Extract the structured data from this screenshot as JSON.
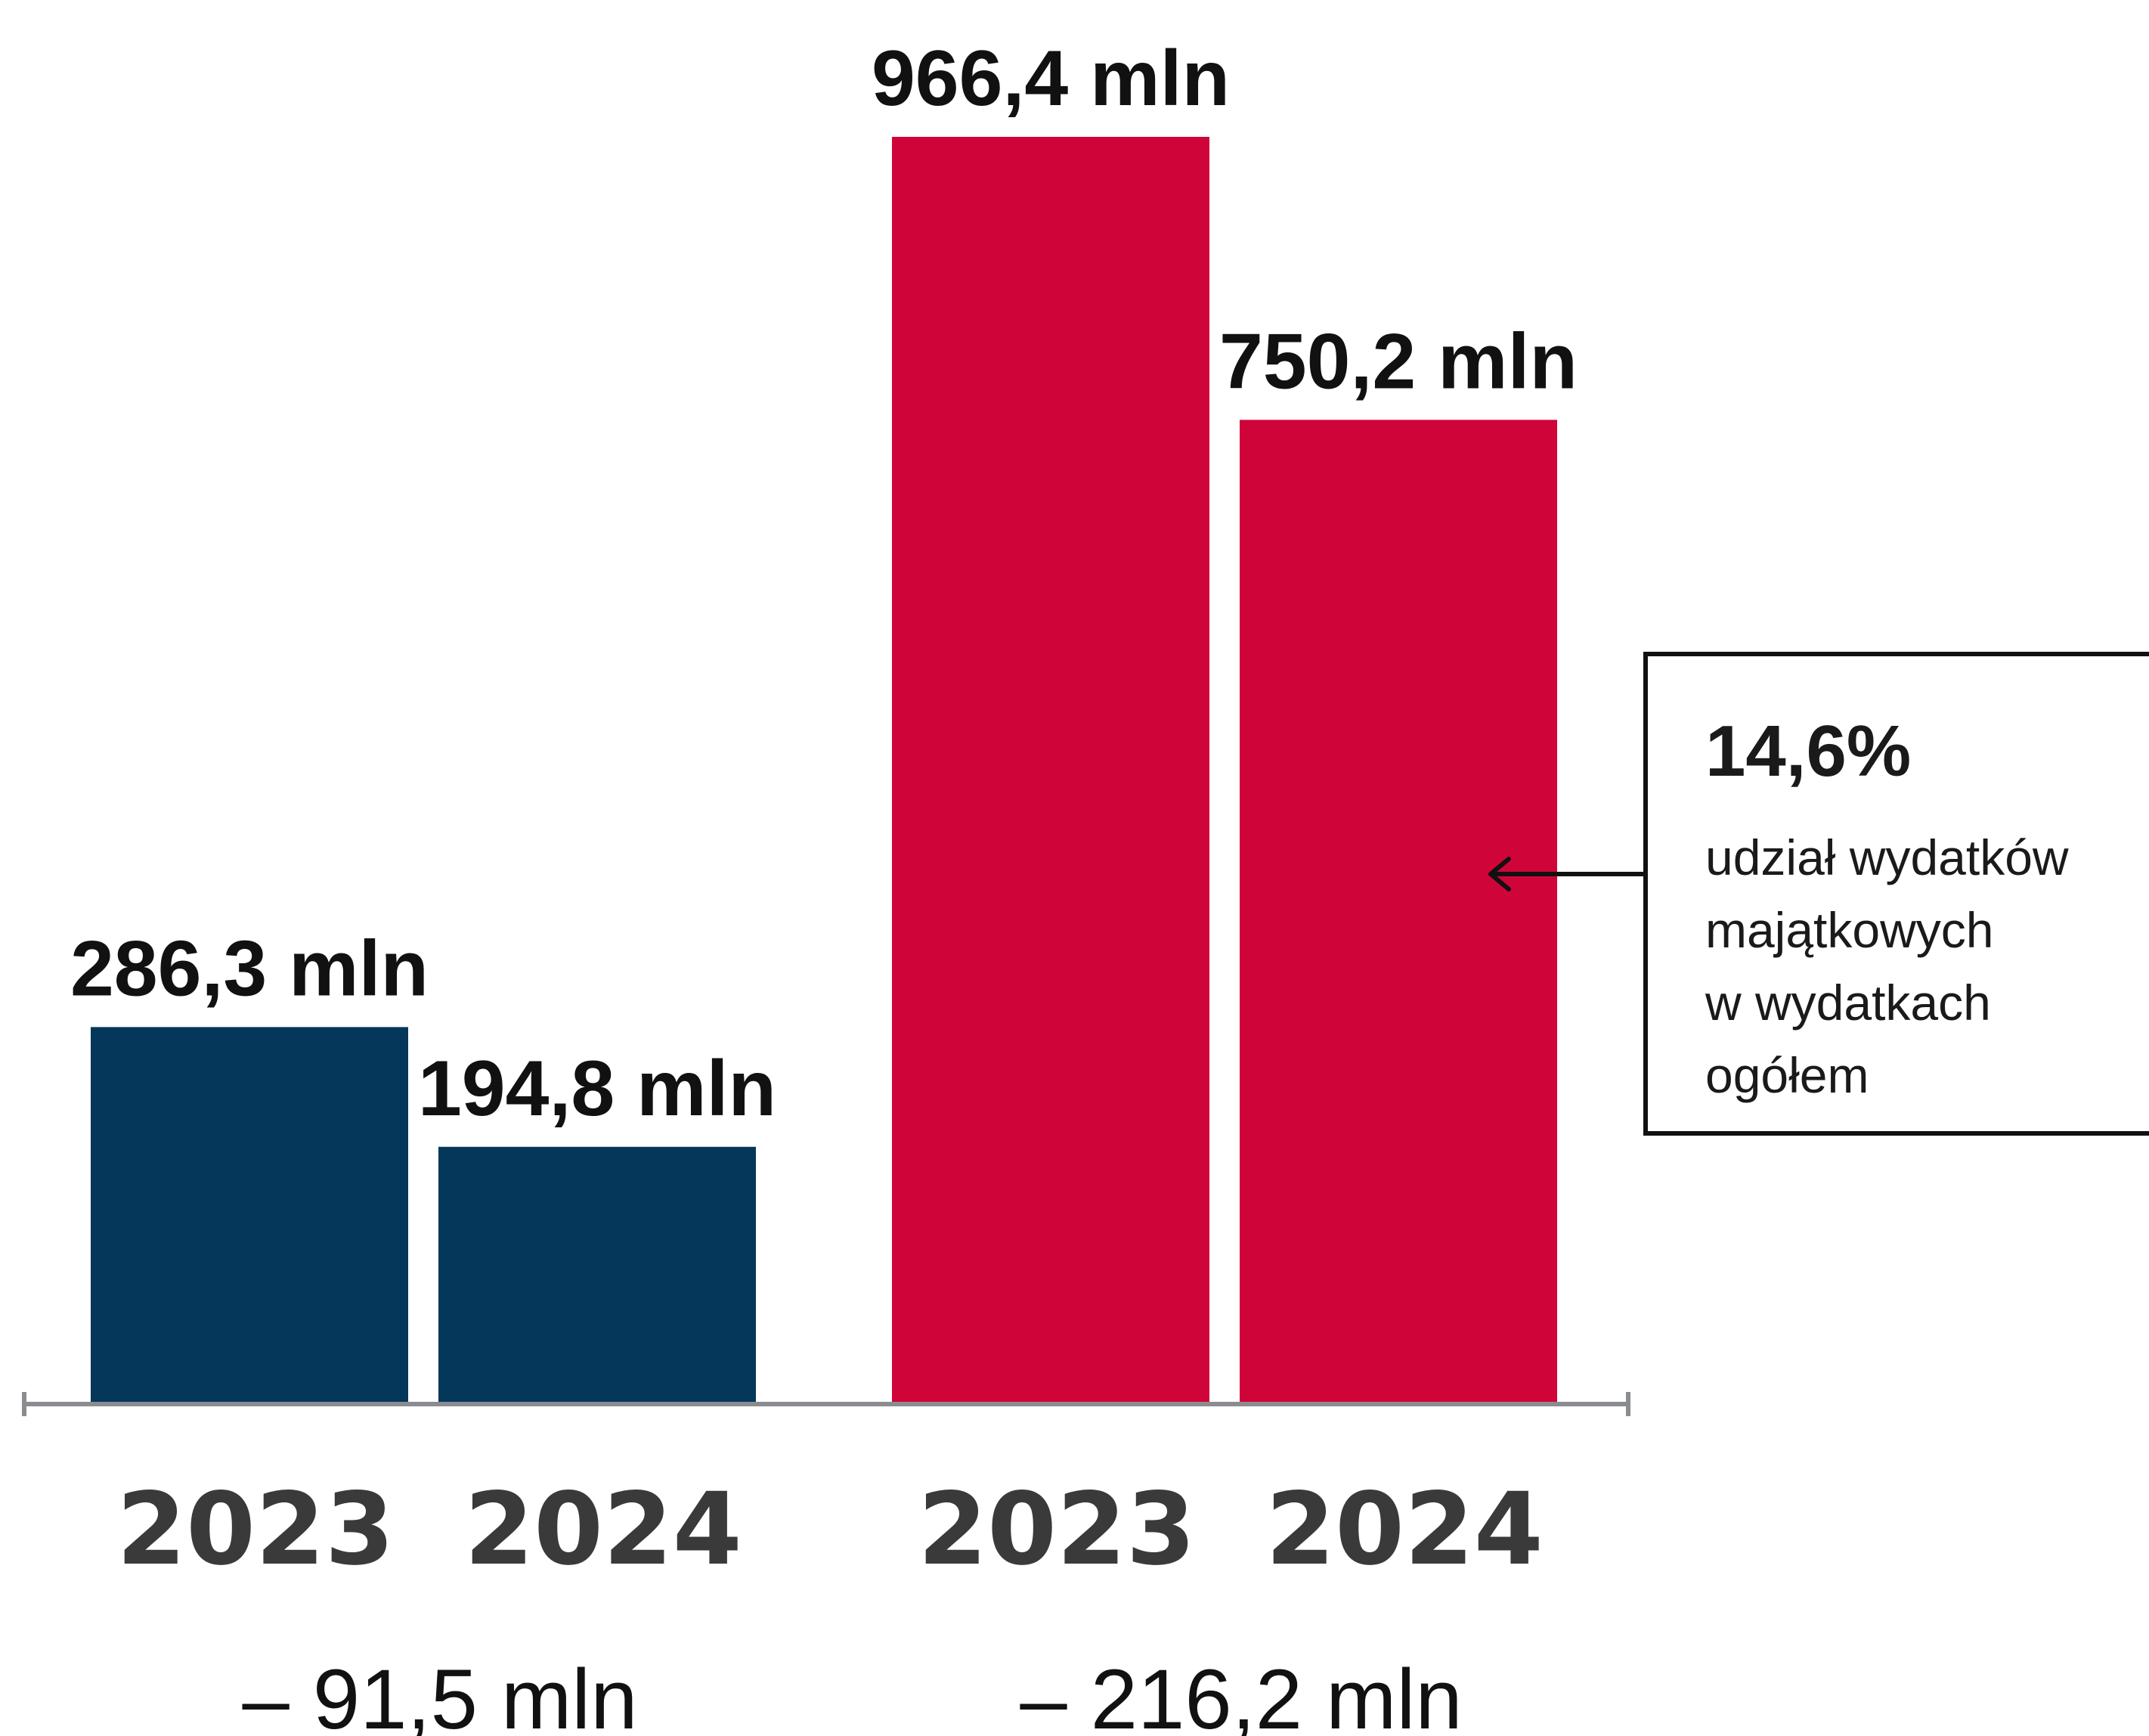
{
  "chart_data": {
    "type": "bar",
    "groups": [
      {
        "color": "#04375a",
        "bars": [
          {
            "category": "2023",
            "value": 286.3,
            "label": "286,3 mln"
          },
          {
            "category": "2024",
            "value": 194.8,
            "label": "194,8 mln"
          }
        ],
        "difference_label": "– 91,5 mln"
      },
      {
        "color": "#cf0539",
        "bars": [
          {
            "category": "2023",
            "value": 966.4,
            "label": "966,4 mln"
          },
          {
            "category": "2024",
            "value": 750.2,
            "label": "750,2 mln"
          }
        ],
        "difference_label": "– 216,2 mln"
      }
    ],
    "ylim": [
      0,
      966.4
    ],
    "axis_color": "#8a8c8f",
    "grid": false,
    "legend": "none",
    "title": "",
    "xlabel": "",
    "ylabel": ""
  },
  "callout": {
    "value": "14,6%",
    "text_lines": [
      "udział wydatków",
      "majątkowych",
      "w wydatkach",
      "ogółem"
    ],
    "points_to": "group 2, 2024"
  }
}
